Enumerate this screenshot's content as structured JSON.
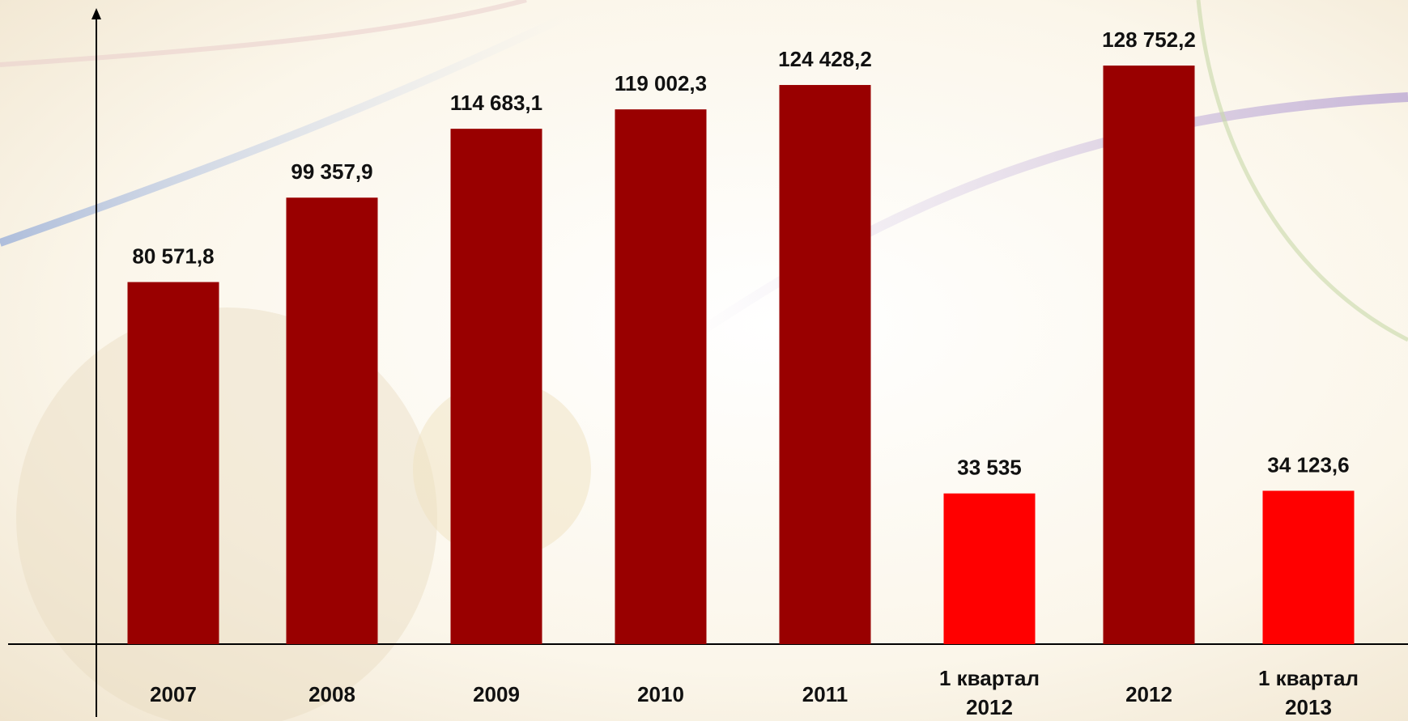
{
  "chart_data": {
    "type": "bar",
    "categories": [
      "2007",
      "2008",
      "2009",
      "2010",
      "2011",
      "1 квартал 2012",
      "2012",
      "1 квартал 2013"
    ],
    "values": [
      80571.8,
      99357.9,
      114683.1,
      119002.3,
      124428.2,
      33535,
      128752.2,
      34123.6
    ],
    "value_labels": [
      "80 571,8",
      "99 357,9",
      "114 683,1",
      "119 002,3",
      "124 428,2",
      "33 535",
      "128 752,2",
      "34 123,6"
    ],
    "colors": [
      "#990000",
      "#990000",
      "#990000",
      "#990000",
      "#990000",
      "#ff0000",
      "#990000",
      "#ff0000"
    ],
    "ylim": [
      0,
      141000
    ]
  }
}
